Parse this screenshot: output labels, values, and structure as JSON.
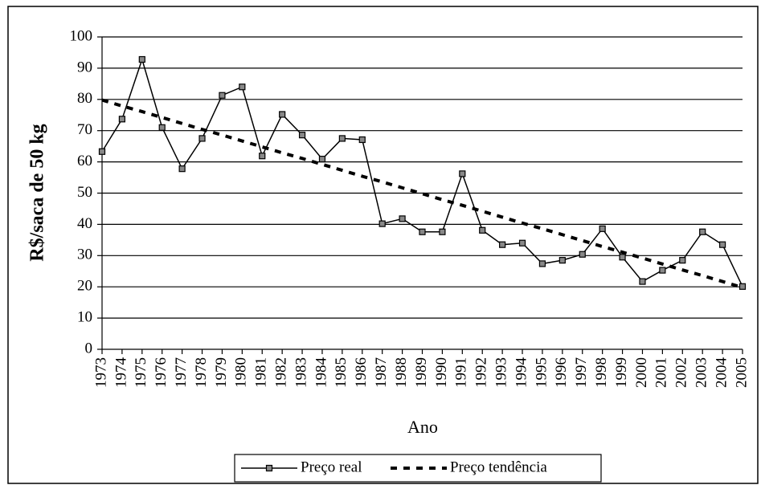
{
  "chart_data": {
    "type": "line",
    "x_label": "Ano",
    "y_label": "R$/saca de 50 kg",
    "categories": [
      "1973",
      "1974",
      "1975",
      "1976",
      "1977",
      "1978",
      "1979",
      "1980",
      "1981",
      "1982",
      "1983",
      "1984",
      "1985",
      "1986",
      "1987",
      "1988",
      "1989",
      "1990",
      "1991",
      "1992",
      "1993",
      "1994",
      "1995",
      "1996",
      "1997",
      "1998",
      "1999",
      "2000",
      "2001",
      "2002",
      "2003",
      "2004",
      "2005"
    ],
    "series": [
      {
        "name": "Preço real",
        "color": "#000000",
        "style": "solid",
        "marker": true,
        "values": [
          63.3,
          73.7,
          92.8,
          71.0,
          57.8,
          67.5,
          81.3,
          84.0,
          61.9,
          75.2,
          68.6,
          60.9,
          67.5,
          67.1,
          40.2,
          41.8,
          37.6,
          37.6,
          56.2,
          38.1,
          33.5,
          34.0,
          27.4,
          28.5,
          30.4,
          38.6,
          29.5,
          21.7,
          25.3,
          28.5,
          37.6,
          33.5,
          20.1
        ]
      },
      {
        "name": "Preço tendência",
        "color": "#000000",
        "style": "dashed",
        "marker": false,
        "values": [
          79.8,
          77.9,
          76.1,
          74.2,
          72.3,
          70.4,
          68.6,
          66.7,
          64.8,
          62.9,
          61.1,
          59.2,
          57.3,
          55.4,
          53.6,
          51.7,
          49.8,
          47.9,
          46.1,
          44.2,
          42.3,
          40.4,
          38.6,
          36.7,
          34.8,
          32.9,
          31.1,
          29.2,
          27.3,
          25.4,
          23.6,
          21.7,
          19.8
        ]
      }
    ],
    "ylim": [
      0,
      100
    ],
    "yticks": [
      0,
      10,
      20,
      30,
      40,
      50,
      60,
      70,
      80,
      90,
      100
    ],
    "grid": true,
    "legend": "bottom"
  }
}
